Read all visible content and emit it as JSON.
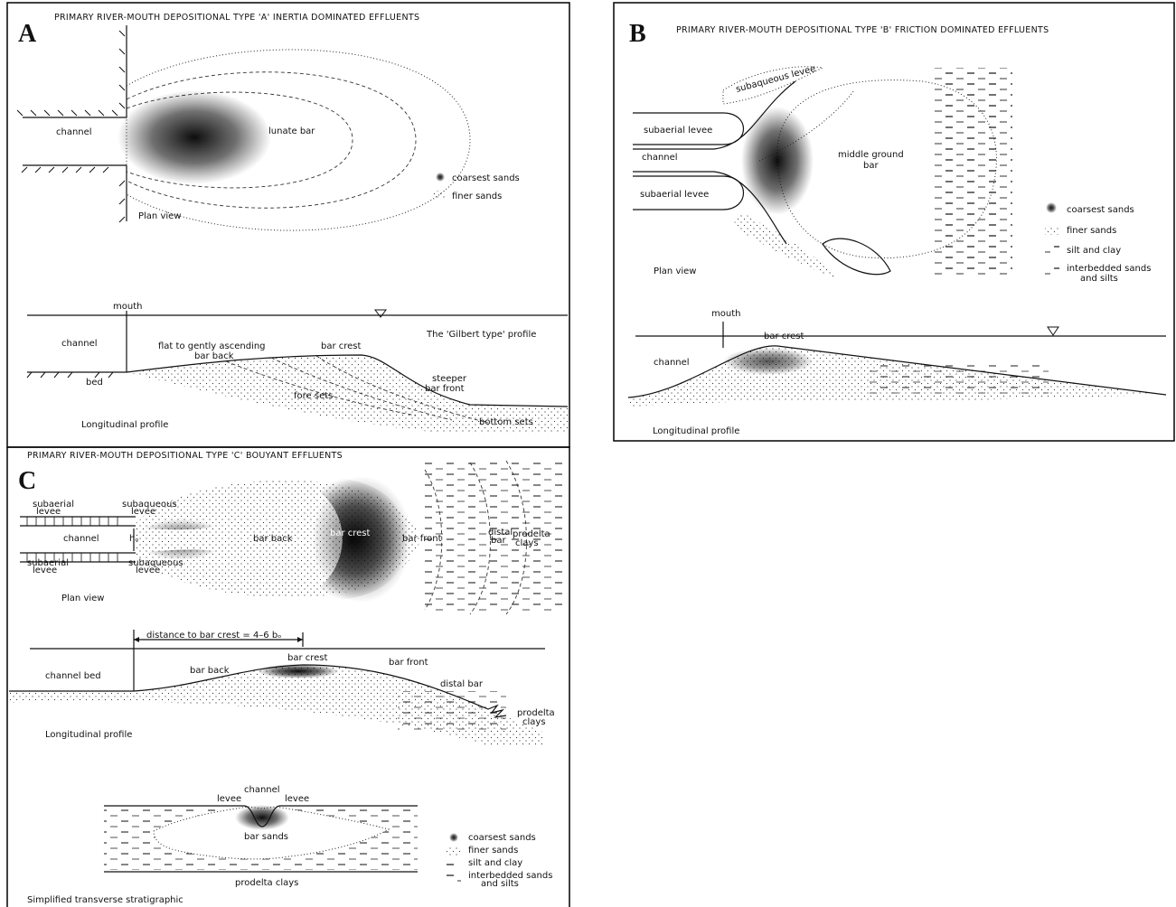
{
  "panel_a": {
    "letter": "A",
    "title": "PRIMARY RIVER-MOUTH DEPOSITIONAL TYPE 'A'   INERTIA DOMINATED EFFLUENTS",
    "labels": [
      "channel",
      "lunate bar",
      "coarsest sands",
      "finer sands",
      "Plan view",
      "mouth",
      "channel",
      "The 'Gilbert type' profile",
      "flat to gently ascending",
      "bar back",
      "bar crest",
      "bed",
      "fore sets",
      "steeper",
      "bar front",
      "Longitudinal profile",
      "bottom sets"
    ]
  },
  "panel_b": {
    "letter": "B",
    "title": "PRIMARY RIVER-MOUTH DEPOSITIONAL TYPE 'B' FRICTION DOMINATED EFFLUENTS",
    "labels": [
      "subaqueous levee",
      "subaerial levee",
      "channel",
      "subaerial levee",
      "middle ground",
      "bar",
      "coarsest sands",
      "finer sands",
      "silt and clay",
      "interbedded sands",
      "and silts",
      "Plan view",
      "mouth",
      "bar crest",
      "channel",
      "Longitudinal profile"
    ]
  },
  "panel_c": {
    "letter": "C",
    "title": "PRIMARY RIVER-MOUTH DEPOSITIONAL TYPE 'C'   BOUYANT EFFLUENTS",
    "labels": [
      "subaerial",
      "levee",
      "subaqueous",
      "levee",
      "channel",
      "hₒ",
      "bar back",
      "bar crest",
      "bar front",
      "distal",
      "bar",
      "prodelta",
      "clays",
      "subaerial",
      "levee",
      "subaqueous",
      "levee",
      "Plan view",
      "distance to bar crest  = 4–6 bₒ",
      "bar crest",
      "bar back",
      "bar front",
      "channel bed",
      "distal bar",
      "prodelta",
      "clays",
      "Longitudinal profile",
      "channel",
      "levee",
      "levee",
      "bar sands",
      "prodelta clays",
      "coarsest sands",
      "finer sands",
      "silt and clay",
      "interbedded sands",
      "and silts",
      "Simplified transverse stratigraphic"
    ]
  }
}
